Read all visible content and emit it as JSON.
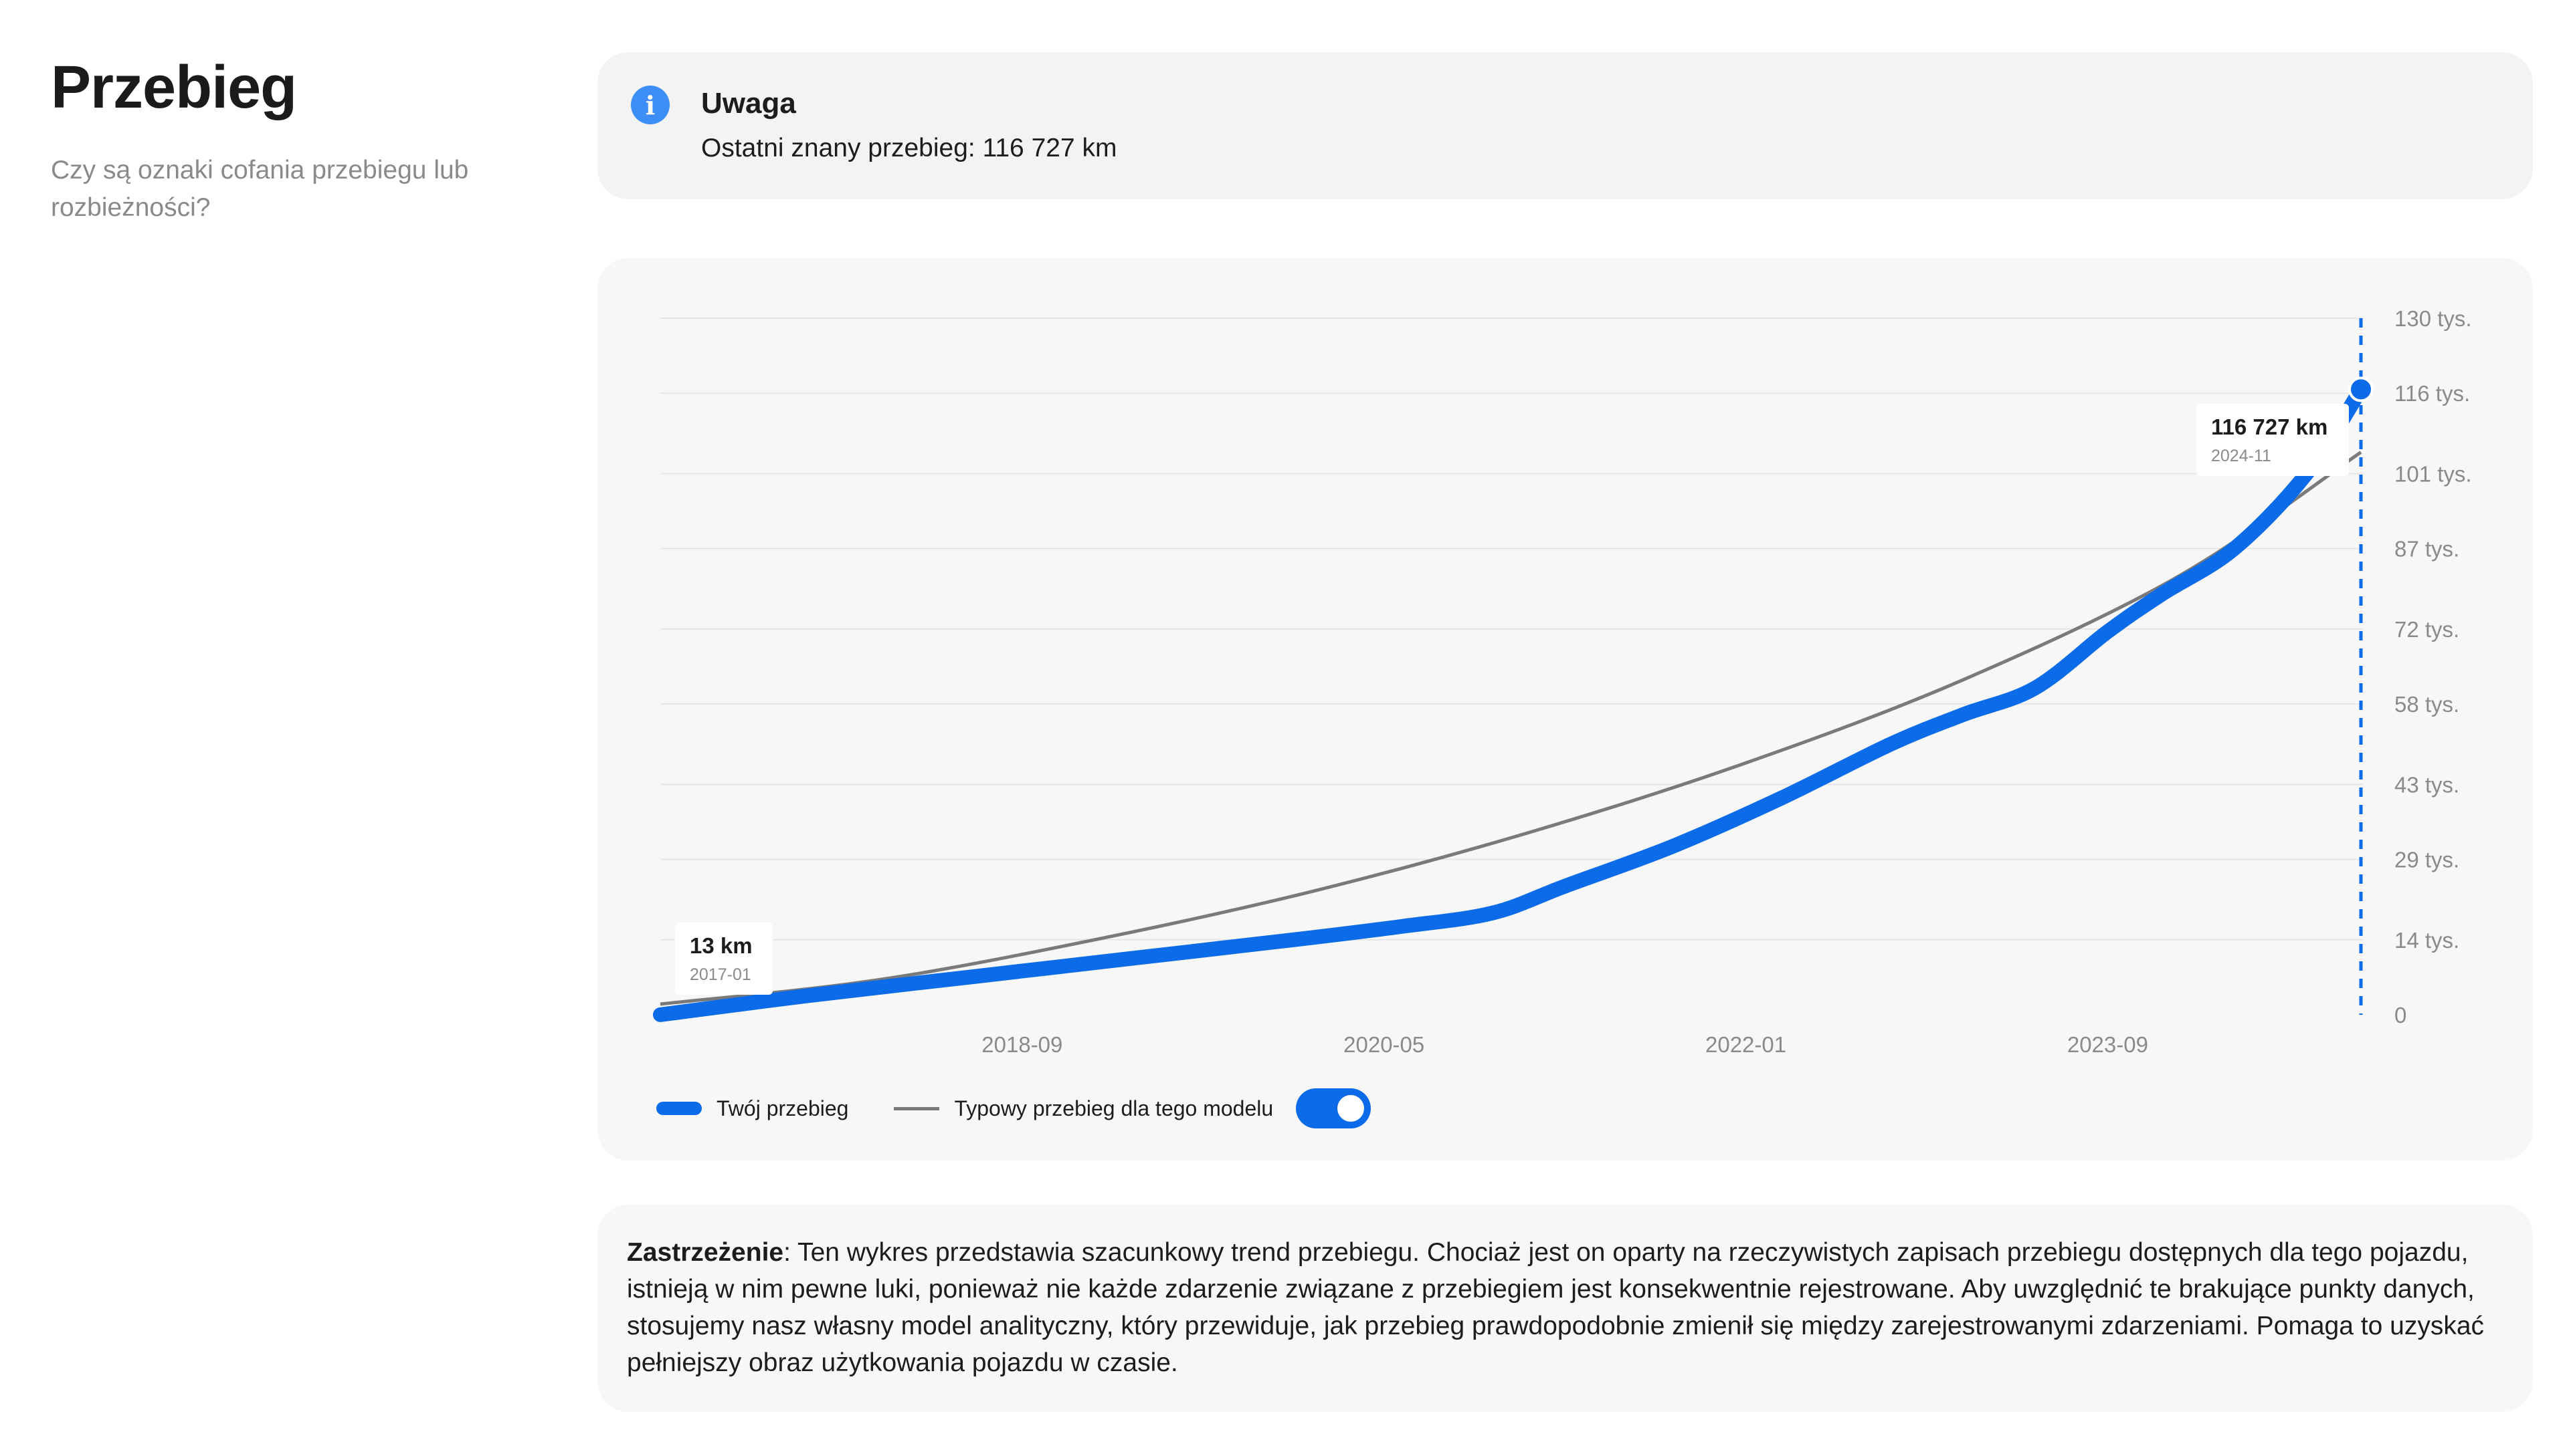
{
  "header": {
    "title": "Przebieg",
    "subtitle": "Czy są oznaki cofania przebiegu lub rozbieżności?"
  },
  "notice": {
    "icon": "info-icon",
    "icon_glyph": "i",
    "title": "Uwaga",
    "text": "Ostatni znany przebieg: 116 727 km"
  },
  "chart": {
    "start_label": {
      "value": "13 km",
      "date": "2017-01"
    },
    "end_label": {
      "value": "116 727 km",
      "date": "2024-11"
    },
    "toggle": {
      "state": "on"
    }
  },
  "chart_data": {
    "type": "line",
    "x_ticks": [
      "2018-09",
      "2020-05",
      "2022-01",
      "2023-09"
    ],
    "y_ticks": [
      "0",
      "14 tys.",
      "29 tys.",
      "43 tys.",
      "58 tys.",
      "72 tys.",
      "87 tys.",
      "101 tys.",
      "116 tys.",
      "130 tys."
    ],
    "y_tick_values": [
      0,
      14000,
      29000,
      43000,
      58000,
      72000,
      87000,
      101000,
      116000,
      130000
    ],
    "ylim": [
      0,
      130000
    ],
    "xlim": [
      "2017-01",
      "2024-11"
    ],
    "grid": true,
    "legend": "bottom-left",
    "series": [
      {
        "name": "Twój przebieg",
        "color": "#0b6be8",
        "style": "thick",
        "points": [
          [
            "2017-01",
            13
          ],
          [
            "2017-09",
            3500
          ],
          [
            "2018-06",
            7000
          ],
          [
            "2019-03",
            10500
          ],
          [
            "2019-12",
            14000
          ],
          [
            "2020-06",
            16500
          ],
          [
            "2020-11",
            19000
          ],
          [
            "2021-03",
            24000
          ],
          [
            "2021-09",
            31500
          ],
          [
            "2022-03",
            40500
          ],
          [
            "2022-09",
            50500
          ],
          [
            "2023-01",
            56000
          ],
          [
            "2023-05",
            61000
          ],
          [
            "2023-09",
            71500
          ],
          [
            "2023-12",
            78500
          ],
          [
            "2024-04",
            87000
          ],
          [
            "2024-08",
            101000
          ],
          [
            "2024-11",
            116727
          ]
        ]
      },
      {
        "name": "Typowy przebieg dla tego modelu",
        "color": "#7a7a7a",
        "style": "thin",
        "points": [
          [
            "2017-01",
            2000
          ],
          [
            "2018-01",
            6500
          ],
          [
            "2019-01",
            14000
          ],
          [
            "2020-01",
            23000
          ],
          [
            "2021-01",
            34000
          ],
          [
            "2022-01",
            47000
          ],
          [
            "2023-01",
            62500
          ],
          [
            "2024-01",
            82000
          ],
          [
            "2024-11",
            105000
          ]
        ]
      }
    ],
    "marker": {
      "date": "2024-11",
      "value": 116727
    }
  },
  "disclaimer": {
    "label": "Zastrzeżenie",
    "text": ": Ten wykres przedstawia szacunkowy trend przebiegu. Chociaż jest on oparty na rzeczywistych zapisach przebiegu dostępnych dla tego pojazdu, istnieją w nim pewne luki, ponieważ nie każde zdarzenie związane z przebiegiem jest konsekwentnie rejestrowane. Aby uwzględnić te brakujące punkty danych, stosujemy nasz własny model analityczny, który przewiduje, jak przebieg prawdopodobnie zmienił się między zarejestrowanymi zdarzeniami. Pomaga to uzyskać pełniejszy obraz użytkowania pojazdu w czasie."
  }
}
